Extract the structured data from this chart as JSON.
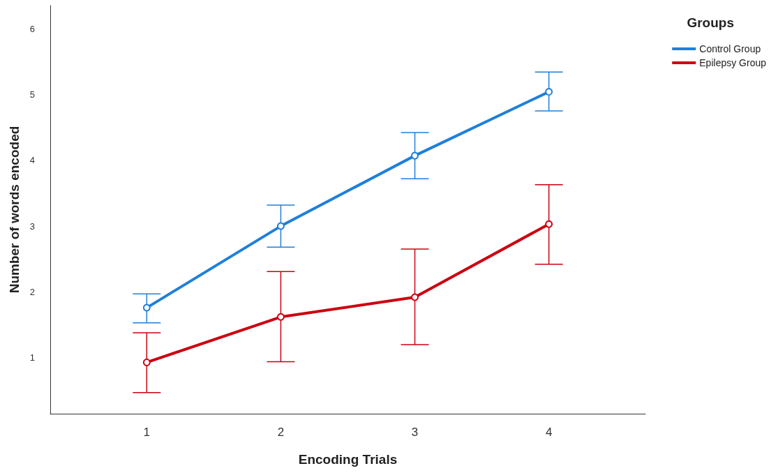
{
  "chart_data": {
    "type": "line",
    "xlabel": "Encoding Trials",
    "ylabel": "Number of words encoded",
    "legend_title": "Groups",
    "x": [
      1,
      2,
      3,
      4
    ],
    "xlim": [
      0.28,
      4.72
    ],
    "xticks": [
      1,
      2,
      3,
      4
    ],
    "ylim": [
      0.15,
      6.35
    ],
    "yticks": [
      1,
      2,
      3,
      4,
      5,
      6
    ],
    "grid": false,
    "legend": "top right",
    "marker": "circle",
    "line_style": "solid",
    "series": [
      {
        "name": "Control Group",
        "color": "#1f7fd9",
        "values": [
          1.76,
          3.0,
          4.07,
          5.04
        ],
        "errors": [
          [
            1.53,
            1.97
          ],
          [
            2.68,
            3.32
          ],
          [
            3.72,
            4.42
          ],
          [
            4.75,
            5.34
          ]
        ]
      },
      {
        "name": "Epilepsy Group",
        "color": "#cc0010",
        "values": [
          0.93,
          1.62,
          1.92,
          3.03
        ],
        "errors": [
          [
            0.47,
            1.38
          ],
          [
            0.94,
            2.31
          ],
          [
            1.2,
            2.65
          ],
          [
            2.42,
            3.63
          ]
        ]
      }
    ]
  }
}
